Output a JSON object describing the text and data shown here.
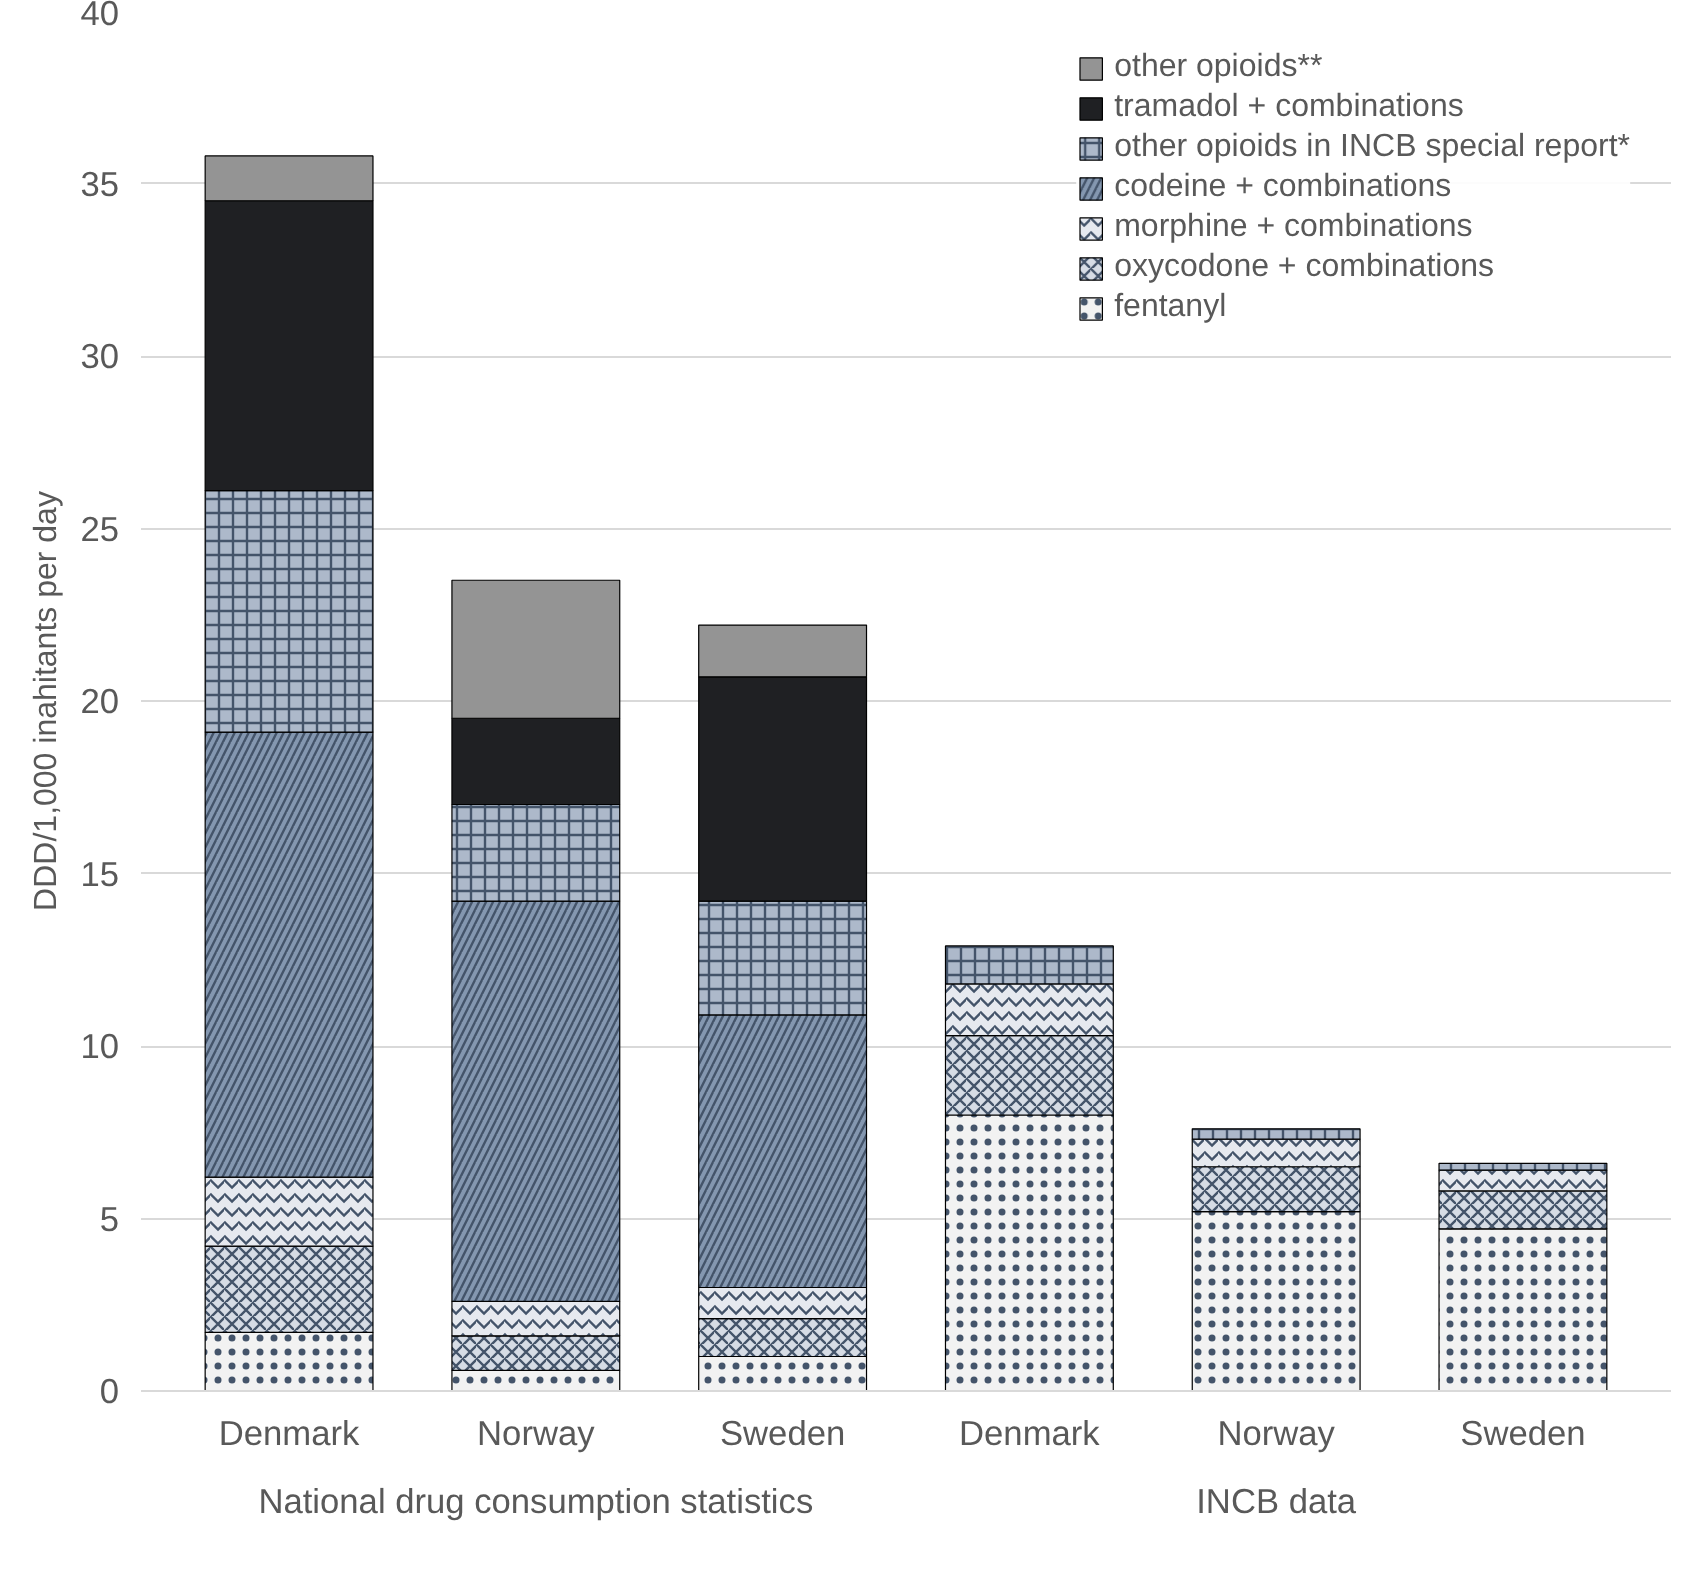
{
  "chart_data": {
    "type": "bar",
    "stacked": true,
    "ylabel": "DDD/1,000 inahitants per day",
    "categories": [
      "Denmark",
      "Norway",
      "Sweden",
      "Denmark",
      "Norway",
      "Sweden"
    ],
    "annotations": [
      "National drug consumption statistics",
      "INCB data"
    ],
    "series": [
      {
        "name": "fentanyl",
        "color": "#f2f2f2",
        "values": [
          1.7,
          0.6,
          1.0,
          8.0,
          5.2,
          4.7
        ]
      },
      {
        "name": "oxycodone + combinations",
        "color": "#d6dce5",
        "values": [
          2.5,
          1.0,
          1.1,
          2.3,
          1.3,
          1.1
        ]
      },
      {
        "name": "morphine + combinations",
        "color": "#e6e9ef",
        "values": [
          2.0,
          1.0,
          0.9,
          1.5,
          0.8,
          0.6
        ]
      },
      {
        "name": "codeine + combinations",
        "color": "#8497b0",
        "values": [
          12.9,
          11.6,
          7.9,
          null,
          null,
          null
        ]
      },
      {
        "name": "other opioids in INCB special report*",
        "color": "#adb9ca",
        "values": [
          7.0,
          2.8,
          3.3,
          1.1,
          0.3,
          0.2
        ]
      },
      {
        "name": "tramadol + combinations",
        "color": "#1f2023",
        "values": [
          8.4,
          2.5,
          6.5,
          null,
          null,
          null
        ]
      },
      {
        "name": "other opioids**",
        "color": "#949494",
        "values": [
          1.3,
          4.0,
          1.5,
          null,
          null,
          null
        ]
      }
    ],
    "ylim": [
      0,
      40
    ],
    "yticks": [
      0,
      5,
      10,
      15,
      20,
      25,
      30,
      35,
      40
    ],
    "grid": "y",
    "legend": "top right"
  }
}
